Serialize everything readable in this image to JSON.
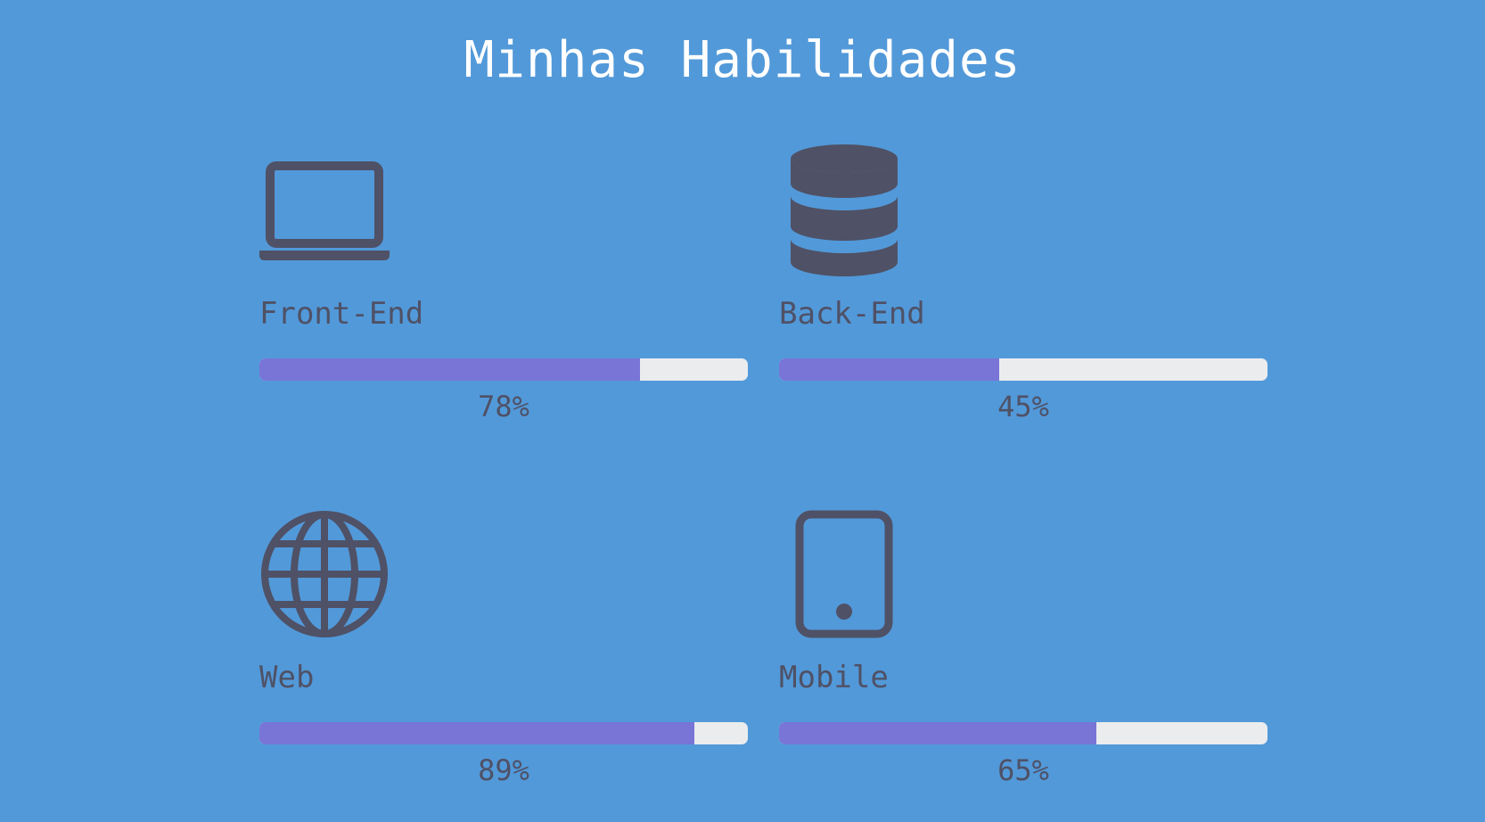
{
  "page": {
    "title": "Minhas Habilidades"
  },
  "colors": {
    "background": "#5299d9",
    "title_text": "#ffffff",
    "text_and_icons": "#4f5166",
    "bar_fill": "#7875d6",
    "bar_track": "#ebecee"
  },
  "skills": [
    {
      "icon": "laptop-icon",
      "label": "Front-End",
      "percent_text": "78%",
      "level": 0.78
    },
    {
      "icon": "database-icon",
      "label": "Back-End",
      "percent_text": "45%",
      "level": 0.45
    },
    {
      "icon": "globe-icon",
      "label": "Web",
      "percent_text": "89%",
      "level": 0.89
    },
    {
      "icon": "mobile-icon",
      "label": "Mobile",
      "percent_text": "65%",
      "level": 0.65
    }
  ]
}
